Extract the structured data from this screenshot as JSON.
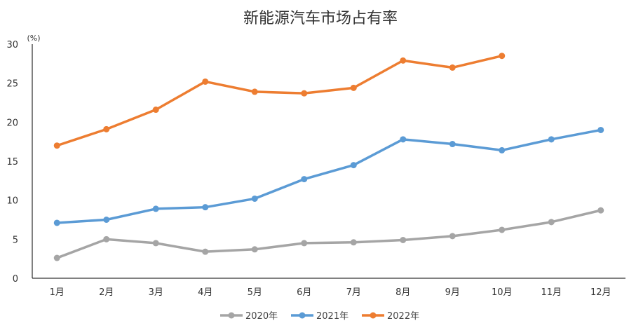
{
  "chart_data": {
    "type": "line",
    "title": "新能源汽车市场占有率",
    "ylabel": "(%)",
    "xlabel": "",
    "ylim": [
      0,
      30
    ],
    "yticks": [
      "0",
      "5",
      "10",
      "15",
      "20",
      "25",
      "30"
    ],
    "categories": [
      "1月",
      "2月",
      "3月",
      "4月",
      "5月",
      "6月",
      "7月",
      "8月",
      "9月",
      "10月",
      "11月",
      "12月"
    ],
    "grid": false,
    "legend": "bottom",
    "series": [
      {
        "name": "2020年",
        "color": "#a5a5a5",
        "values": [
          2.6,
          5.0,
          4.5,
          3.4,
          3.7,
          4.5,
          4.6,
          4.9,
          5.4,
          6.2,
          7.2,
          8.7
        ]
      },
      {
        "name": "2021年",
        "color": "#5b9bd5",
        "values": [
          7.1,
          7.5,
          8.9,
          9.1,
          10.2,
          12.7,
          14.5,
          17.8,
          17.2,
          16.4,
          17.8,
          19.0
        ]
      },
      {
        "name": "2022年",
        "color": "#ed7d31",
        "values": [
          17.0,
          19.1,
          21.6,
          25.2,
          23.9,
          23.7,
          24.4,
          27.9,
          27.0,
          28.5,
          null,
          null
        ]
      }
    ]
  }
}
